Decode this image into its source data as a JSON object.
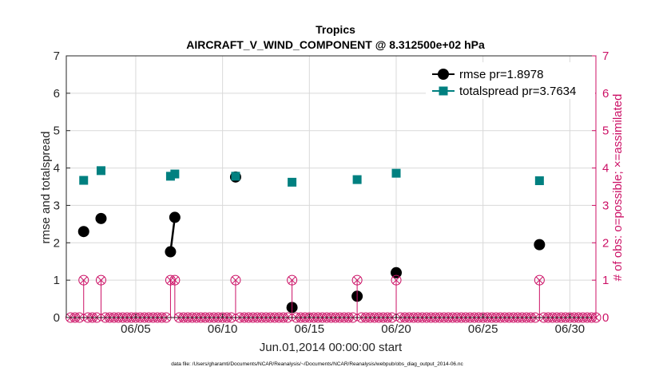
{
  "chart_data": {
    "type": "line",
    "title": "Tropics",
    "subtitle": "AIRCRAFT_V_WIND_COMPONENT @ 8.312500e+02 hPa",
    "xlabel": "Jun.01,2014 00:00:00 start",
    "ylabel": "rmse and totalspread",
    "ylabel_right": "# of obs: o=possible; ×=assimilated",
    "footer": "data file: /Users/gharamti/Documents/NCAR/Reanalysis/~/Documents/NCAR/Reanalysis/webpub/obs_diag_output_2014-06.nc",
    "xlim": [
      1,
      31.5
    ],
    "ylim": [
      0,
      7
    ],
    "ylim_right": [
      0,
      7
    ],
    "x_ticks": [
      5,
      10,
      15,
      20,
      25,
      30
    ],
    "x_tick_labels": [
      "06/05",
      "06/10",
      "06/15",
      "06/20",
      "06/25",
      "06/30"
    ],
    "y_ticks": [
      0,
      1,
      2,
      3,
      4,
      5,
      6,
      7
    ],
    "y_tick_labels": [
      "0",
      "1",
      "2",
      "3",
      "4",
      "5",
      "6",
      "7"
    ],
    "y_right_ticks": [
      0,
      1,
      2,
      3,
      4,
      5,
      6,
      7
    ],
    "y_right_tick_labels": [
      "0",
      "1",
      "2",
      "3",
      "4",
      "5",
      "6",
      "7"
    ],
    "grid": true,
    "legend_position": "top-right",
    "colors": {
      "rmse": "#000000",
      "totalspread": "#008080",
      "obs": "#cc1166",
      "grid": "#d9d9d9",
      "axis": "#262626"
    },
    "series": [
      {
        "name": "rmse",
        "legend_label": "rmse pr=1.8978",
        "points": [
          {
            "x": 2.0,
            "y": 2.3
          },
          {
            "x": 3.0,
            "y": 2.65
          },
          {
            "x": 7.0,
            "y": 1.76
          },
          {
            "x": 7.25,
            "y": 2.68
          },
          {
            "x": 10.75,
            "y": 3.76
          },
          {
            "x": 14.0,
            "y": 0.27
          },
          {
            "x": 17.75,
            "y": 0.57
          },
          {
            "x": 20.0,
            "y": 1.2
          },
          {
            "x": 28.25,
            "y": 1.95
          }
        ]
      },
      {
        "name": "totalspread",
        "legend_label": "totalspread pr=3.7634",
        "points": [
          {
            "x": 2.0,
            "y": 3.67
          },
          {
            "x": 3.0,
            "y": 3.93
          },
          {
            "x": 7.0,
            "y": 3.78
          },
          {
            "x": 7.25,
            "y": 3.84
          },
          {
            "x": 10.75,
            "y": 3.78
          },
          {
            "x": 14.0,
            "y": 3.62
          },
          {
            "x": 17.75,
            "y": 3.69
          },
          {
            "x": 20.0,
            "y": 3.86
          },
          {
            "x": 28.25,
            "y": 3.66
          }
        ]
      }
    ],
    "obs_counts": {
      "start": 1.25,
      "step": 0.25,
      "end": 31.5,
      "nonzero_x": [
        2.0,
        3.0,
        7.0,
        7.25,
        10.75,
        14.0,
        17.75,
        20.0,
        28.25
      ],
      "nonzero_possible": 1,
      "nonzero_assimilated": 1
    }
  }
}
